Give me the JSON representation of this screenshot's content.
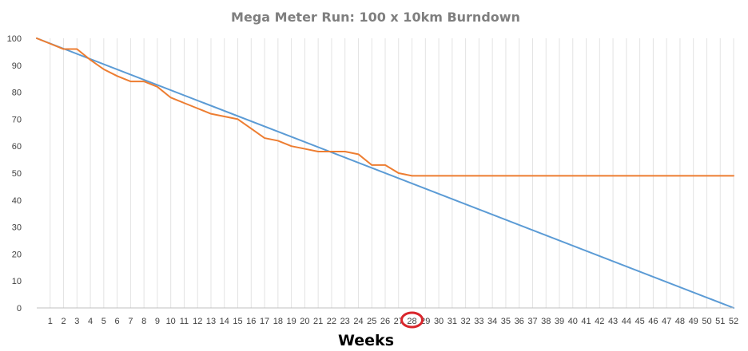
{
  "chart_data": {
    "type": "line",
    "title": "Mega Meter Run: 100 x 10km Burndown",
    "xlabel": "Weeks",
    "ylabel": "",
    "ylim": [
      0,
      100
    ],
    "yticks": [
      0,
      10,
      20,
      30,
      40,
      50,
      60,
      70,
      80,
      90,
      100
    ],
    "xlim": [
      0,
      52
    ],
    "xticks": [
      1,
      2,
      3,
      4,
      5,
      6,
      7,
      8,
      9,
      10,
      11,
      12,
      13,
      14,
      15,
      16,
      17,
      18,
      19,
      20,
      21,
      22,
      23,
      24,
      25,
      26,
      27,
      28,
      29,
      30,
      31,
      32,
      33,
      34,
      35,
      36,
      37,
      38,
      39,
      40,
      41,
      42,
      43,
      44,
      45,
      46,
      47,
      48,
      49,
      50,
      51,
      52
    ],
    "grid": "vertical",
    "legend": "none",
    "highlight": {
      "tick": 28,
      "style": "red circle",
      "color": "#d9262c"
    },
    "series": [
      {
        "color": "#5b9bd5",
        "x": [
          0,
          52
        ],
        "y": [
          100,
          0
        ]
      },
      {
        "color": "#ed7d31",
        "x": [
          0,
          1,
          2,
          3,
          4,
          5,
          6,
          7,
          8,
          9,
          10,
          11,
          12,
          13,
          14,
          15,
          16,
          17,
          18,
          19,
          20,
          21,
          22,
          23,
          24,
          25,
          26,
          27,
          28,
          29,
          30,
          31,
          32,
          33,
          34,
          35,
          36,
          37,
          38,
          39,
          40,
          41,
          42,
          43,
          44,
          45,
          46,
          47,
          48,
          49,
          50,
          51,
          52
        ],
        "y": [
          100,
          98,
          96,
          96,
          92,
          88.5,
          86,
          84,
          84,
          82,
          78,
          76,
          74,
          72,
          71,
          70,
          66.5,
          63,
          62,
          60,
          59,
          58,
          58,
          58,
          57,
          53,
          53,
          50,
          49,
          49,
          49,
          49,
          49,
          49,
          49,
          49,
          49,
          49,
          49,
          49,
          49,
          49,
          49,
          49,
          49,
          49,
          49,
          49,
          49,
          49,
          49,
          49,
          49
        ]
      }
    ]
  }
}
